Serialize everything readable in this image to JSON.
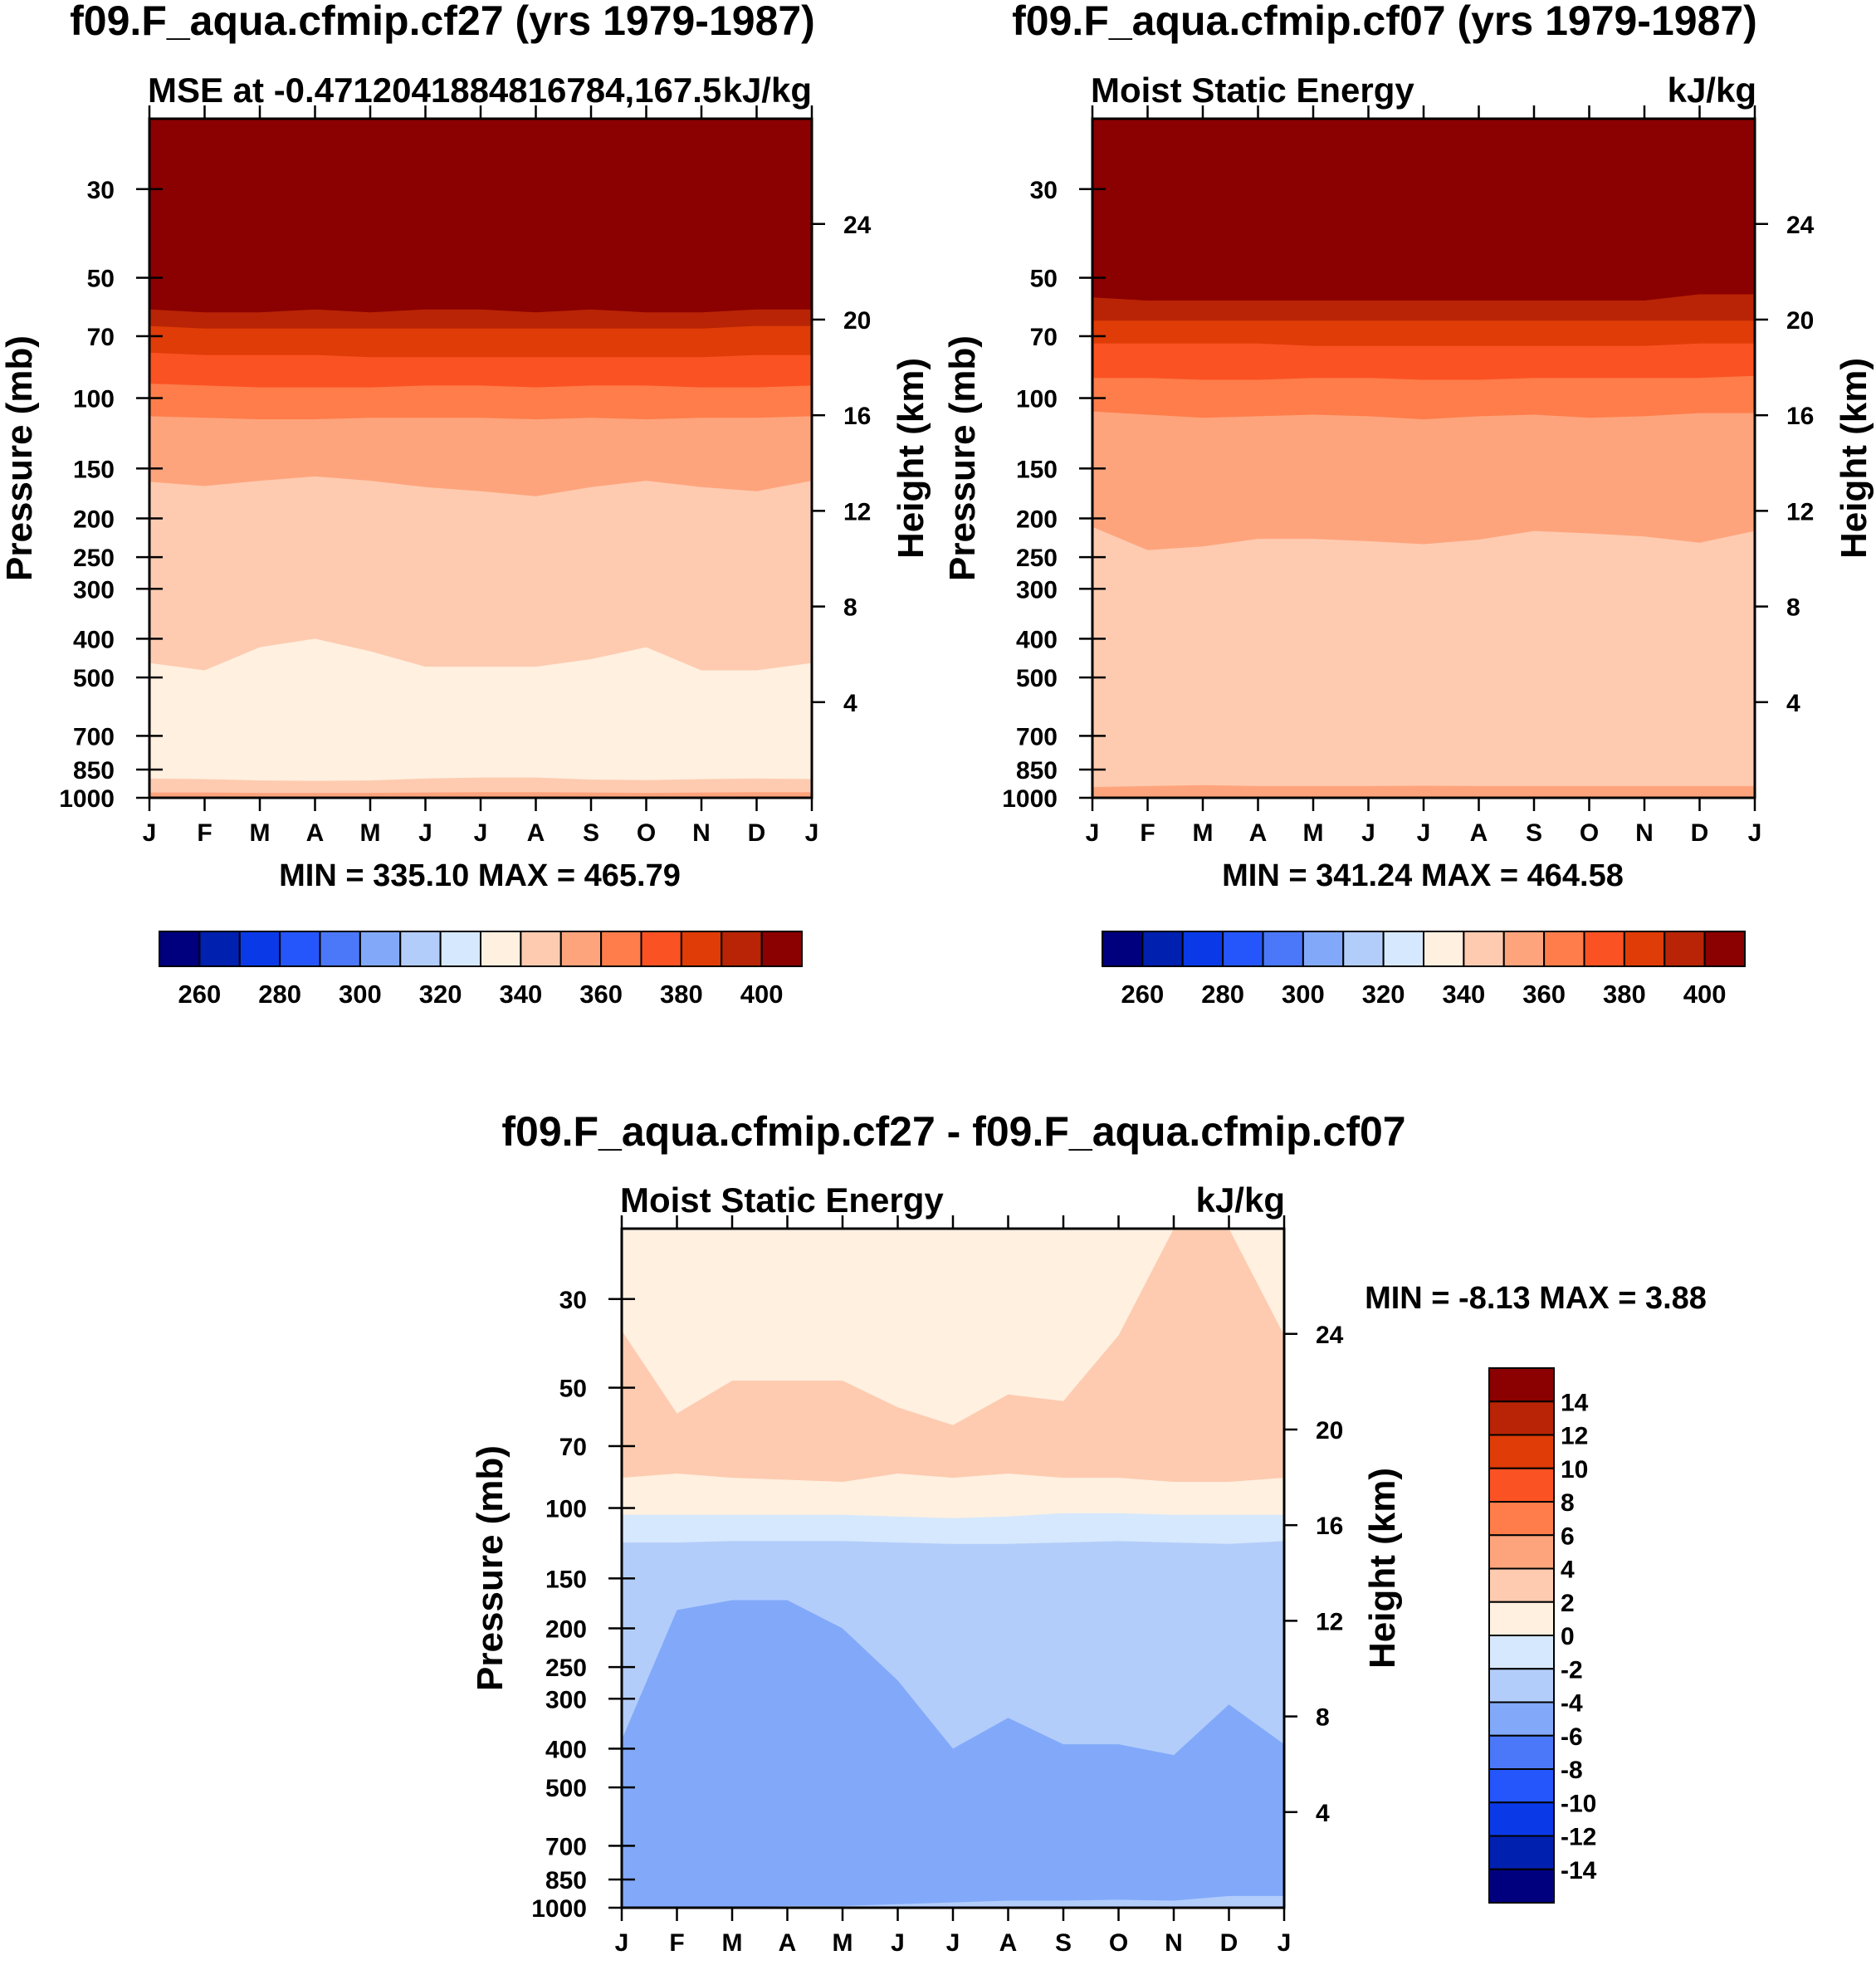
{
  "chart_data": [
    {
      "type": "heatmap",
      "title": "f09.F_aqua.cfmip.cf27 (yrs 1979-1987)",
      "subtitle_left": "MSE at -0.4712041884816784,167.5",
      "subtitle_right": "kJ/kg",
      "ylabel": "Pressure (mb)",
      "y2label": "Height (km)",
      "x_ticks": [
        "J",
        "F",
        "M",
        "A",
        "M",
        "J",
        "J",
        "A",
        "S",
        "O",
        "N",
        "D",
        "J"
      ],
      "y_ticks": [
        "30",
        "50",
        "70",
        "100",
        "150",
        "200",
        "250",
        "300",
        "400",
        "500",
        "700",
        "850",
        "1000"
      ],
      "y2_ticks": [
        "24",
        "20",
        "16",
        "12",
        "8",
        "4"
      ],
      "stats": "MIN = 335.10 MAX = 465.79",
      "colorbar_labels": [
        "260",
        "280",
        "300",
        "320",
        "340",
        "360",
        "380",
        "400"
      ],
      "contour_bands": [
        {
          "level": "> 400",
          "color": "#8b0000",
          "top_p": [
            20,
            20,
            20,
            20,
            20,
            20,
            20,
            20,
            20,
            20,
            20,
            20,
            20
          ]
        },
        {
          "level": "390-400",
          "color": "#b82405",
          "top_p": [
            60,
            61,
            61,
            60,
            61,
            60,
            60,
            61,
            60,
            61,
            61,
            60,
            60
          ]
        },
        {
          "level": "380-390",
          "color": "#df3c07",
          "top_p": [
            66,
            67,
            67,
            67,
            67,
            67,
            67,
            67,
            67,
            67,
            67,
            66,
            66
          ]
        },
        {
          "level": "370-380",
          "color": "#fb5223",
          "top_p": [
            77,
            78,
            78,
            78,
            79,
            79,
            79,
            79,
            79,
            79,
            79,
            78,
            78
          ]
        },
        {
          "level": "360-370",
          "color": "#fe7d4a",
          "top_p": [
            92,
            93,
            94,
            94,
            94,
            93,
            93,
            94,
            93,
            93,
            94,
            94,
            93
          ]
        },
        {
          "level": "350-360",
          "color": "#fea47d",
          "top_p": [
            111,
            112,
            113,
            113,
            112,
            112,
            112,
            113,
            112,
            113,
            112,
            112,
            111
          ]
        },
        {
          "level": "340-350",
          "color": "#fecbb0",
          "top_p": [
            162,
            166,
            161,
            157,
            161,
            167,
            171,
            176,
            167,
            161,
            167,
            171,
            161
          ]
        },
        {
          "level": "330-340",
          "color": "#fff0e0",
          "top_p": [
            460,
            480,
            420,
            400,
            430,
            470,
            470,
            470,
            450,
            420,
            480,
            480,
            460
          ]
        },
        {
          "level": "340-350",
          "color": "#fecbb0",
          "top_p": [
            895,
            898,
            905,
            907,
            905,
            895,
            890,
            890,
            900,
            903,
            898,
            895,
            898
          ]
        },
        {
          "level": "350-360",
          "color": "#fea47d",
          "top_p": [
            970,
            970,
            972,
            972,
            972,
            970,
            968,
            968,
            970,
            972,
            970,
            968,
            968
          ]
        }
      ]
    },
    {
      "type": "heatmap",
      "title": "f09.F_aqua.cfmip.cf07 (yrs 1979-1987)",
      "subtitle_left": "Moist Static Energy",
      "subtitle_right": "kJ/kg",
      "ylabel": "Pressure (mb)",
      "y2label": "Height (km)",
      "x_ticks": [
        "J",
        "F",
        "M",
        "A",
        "M",
        "J",
        "J",
        "A",
        "S",
        "O",
        "N",
        "D",
        "J"
      ],
      "y_ticks": [
        "30",
        "50",
        "70",
        "100",
        "150",
        "200",
        "250",
        "300",
        "400",
        "500",
        "700",
        "850",
        "1000"
      ],
      "y2_ticks": [
        "24",
        "20",
        "16",
        "12",
        "8",
        "4"
      ],
      "stats": "MIN = 341.24 MAX = 464.58",
      "colorbar_labels": [
        "260",
        "280",
        "300",
        "320",
        "340",
        "360",
        "380",
        "400"
      ],
      "contour_bands": [
        {
          "level": "> 400",
          "color": "#8b0000",
          "top_p": [
            20,
            20,
            20,
            20,
            20,
            20,
            20,
            20,
            20,
            20,
            20,
            20,
            20
          ]
        },
        {
          "level": "390-400",
          "color": "#b82405",
          "top_p": [
            56,
            57,
            57,
            57,
            57,
            57,
            57,
            57,
            57,
            57,
            57,
            55,
            55
          ]
        },
        {
          "level": "380-390",
          "color": "#df3c07",
          "top_p": [
            64,
            64,
            64,
            64,
            64,
            64,
            64,
            64,
            64,
            64,
            64,
            64,
            64
          ]
        },
        {
          "level": "370-380",
          "color": "#fb5223",
          "top_p": [
            73,
            73,
            73,
            73,
            74,
            74,
            74,
            74,
            74,
            74,
            74,
            73,
            73
          ]
        },
        {
          "level": "360-370",
          "color": "#fe7d4a",
          "top_p": [
            89,
            89,
            90,
            90,
            89,
            89,
            90,
            90,
            89,
            89,
            89,
            89,
            88
          ]
        },
        {
          "level": "350-360",
          "color": "#fea47d",
          "top_p": [
            108,
            110,
            112,
            111,
            110,
            111,
            113,
            111,
            110,
            112,
            111,
            109,
            109
          ]
        },
        {
          "level": "340-350",
          "color": "#fecbb0",
          "top_p": [
            210,
            240,
            235,
            225,
            225,
            228,
            232,
            226,
            215,
            218,
            222,
            230,
            215
          ]
        },
        {
          "level": "350-360",
          "color": "#fea47d",
          "top_p": [
            940,
            935,
            930,
            935,
            935,
            935,
            933,
            935,
            935,
            935,
            935,
            935,
            935
          ]
        }
      ]
    },
    {
      "type": "heatmap",
      "title": "f09.F_aqua.cfmip.cf27 - f09.F_aqua.cfmip.cf07",
      "subtitle_left": "Moist Static Energy",
      "subtitle_right": "kJ/kg",
      "ylabel": "Pressure (mb)",
      "y2label": "Height (km)",
      "x_ticks": [
        "J",
        "F",
        "M",
        "A",
        "M",
        "J",
        "J",
        "A",
        "S",
        "O",
        "N",
        "D",
        "J"
      ],
      "y_ticks": [
        "30",
        "50",
        "70",
        "100",
        "150",
        "200",
        "250",
        "300",
        "400",
        "500",
        "700",
        "850",
        "1000"
      ],
      "y2_ticks": [
        "24",
        "20",
        "16",
        "12",
        "8",
        "4"
      ],
      "stats": "MIN =  -8.13 MAX =   3.88",
      "colorbar_labels": [
        "14",
        "12",
        "10",
        "8",
        "6",
        "4",
        "2",
        "0",
        "-2",
        "-4",
        "-6",
        "-8",
        "-10",
        "-12",
        "-14"
      ],
      "contour_bands": [
        {
          "level": "0-2",
          "color": "#fff0e0",
          "top_p": [
            20,
            20,
            20,
            20,
            20,
            20,
            20,
            20,
            20,
            20,
            20,
            20,
            20
          ]
        },
        {
          "level": "2-4",
          "color": "#fecbb0",
          "top_p": [
            36,
            58,
            48,
            48,
            48,
            56,
            62,
            52,
            54,
            37,
            20,
            20,
            37
          ]
        },
        {
          "level": "0-2",
          "color": "#fff0e0",
          "top_p": [
            84,
            82,
            84,
            85,
            86,
            82,
            84,
            82,
            84,
            84,
            86,
            86,
            84
          ]
        },
        {
          "level": "-2-0",
          "color": "#d6e8fd",
          "top_p": [
            104,
            104,
            104,
            104,
            104,
            105,
            106,
            105,
            103,
            103,
            104,
            104,
            104
          ]
        },
        {
          "level": "-4--2",
          "color": "#b3cdfb",
          "top_p": [
            122,
            122,
            121,
            121,
            121,
            122,
            123,
            123,
            122,
            121,
            122,
            123,
            121
          ]
        },
        {
          "level": "-6--4",
          "color": "#82a9f9",
          "top_p": [
            380,
            180,
            170,
            170,
            200,
            270,
            400,
            335,
            390,
            390,
            415,
            310,
            390
          ]
        },
        {
          "level": "-4--2",
          "color": "#b3cdfb",
          "top_p": [
            1000,
            1000,
            1000,
            990,
            990,
            980,
            970,
            960,
            960,
            955,
            960,
            935,
            935
          ]
        }
      ]
    }
  ]
}
